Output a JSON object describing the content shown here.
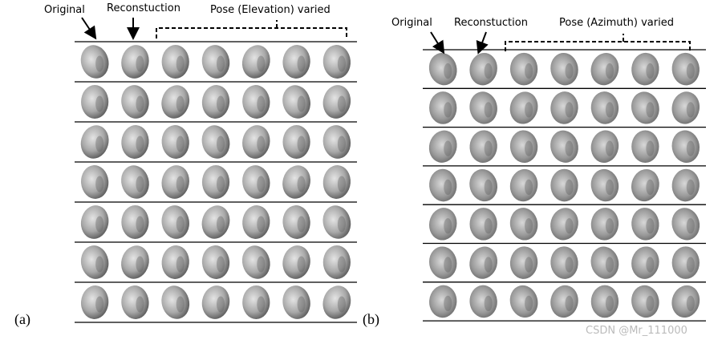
{
  "panel_a": {
    "tag": "(a)",
    "original": "Original",
    "reconstruction": "Reconstuction",
    "varied": "Pose (Elevation) varied"
  },
  "panel_b": {
    "tag": "(b)",
    "original": "Original",
    "reconstruction": "Reconstuction",
    "varied": "Pose (Azimuth) varied"
  },
  "watermark": "CSDN @Mr_111000"
}
